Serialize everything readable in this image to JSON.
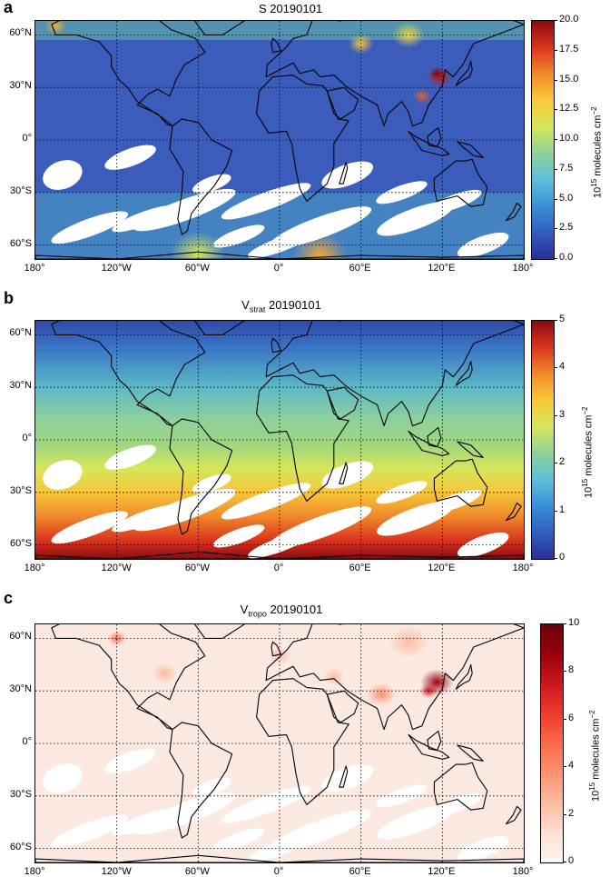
{
  "panels": [
    {
      "letter": "a",
      "title_main": "S",
      "title_sub": "",
      "title_date": " 20190101",
      "colormap": "jet",
      "cbar_ticks": [
        "20.0",
        "17.5",
        "15.0",
        "12.5",
        "10.0",
        "7.5",
        "5.0",
        "2.5",
        "0.0"
      ],
      "cbar_range": [
        0,
        20
      ],
      "unit_prefix": "10",
      "unit_exp": "15",
      "unit_text": " molecules cm",
      "unit_exp2": "−2"
    },
    {
      "letter": "b",
      "title_main": "V",
      "title_sub": "strat",
      "title_date": " 20190101",
      "colormap": "jet",
      "cbar_ticks": [
        "5",
        "4",
        "3",
        "2",
        "1",
        "0"
      ],
      "cbar_range": [
        0,
        5
      ],
      "unit_prefix": "10",
      "unit_exp": "15",
      "unit_text": " molecules cm",
      "unit_exp2": "−2"
    },
    {
      "letter": "c",
      "title_main": "V",
      "title_sub": "tropo",
      "title_date": " 20190101",
      "colormap": "reds",
      "cbar_ticks": [
        "10",
        "8",
        "6",
        "4",
        "2",
        "0"
      ],
      "cbar_range": [
        0,
        10
      ],
      "unit_prefix": "10",
      "unit_exp": "15",
      "unit_text": " molecules cm",
      "unit_exp2": "−2"
    }
  ],
  "lat_labels": [
    "60°N",
    "30°N",
    "0°",
    "30°S",
    "60°S"
  ],
  "lon_labels": [
    "180°",
    "120°W",
    "60°W",
    "0°",
    "60°E",
    "120°E",
    "180°"
  ],
  "colors": {
    "jet_low": "#2b2f95",
    "jet_high": "#8b0a12",
    "reds_low": "#fff5f0",
    "reds_high": "#67000d",
    "coastline": "#000000",
    "missing": "#ffffff"
  }
}
